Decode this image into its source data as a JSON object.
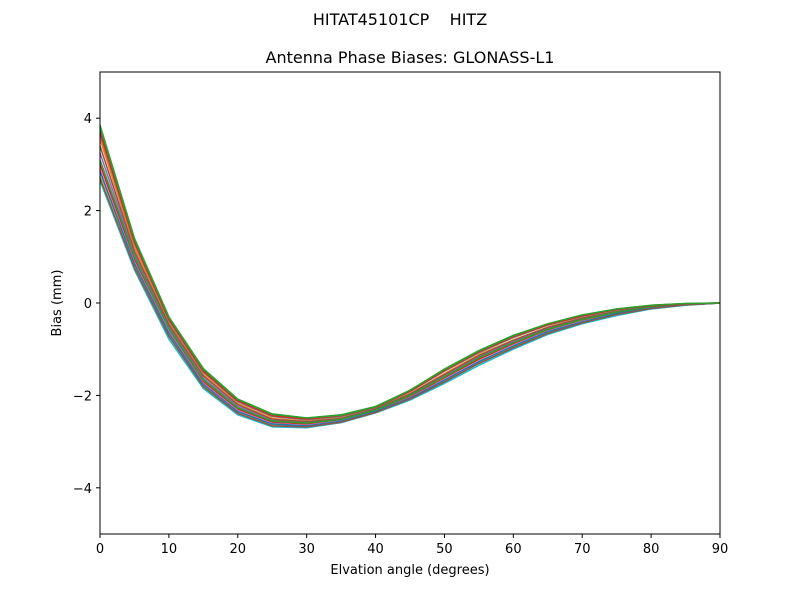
{
  "figure": {
    "suptitle": "HITAT45101CP    HITZ"
  },
  "chart_data": {
    "type": "line",
    "title": "Antenna Phase Biases: GLONASS-L1",
    "xlabel": "Elvation angle (degrees)",
    "ylabel": "Bias (mm)",
    "xlim": [
      0,
      90
    ],
    "ylim": [
      -5,
      5
    ],
    "x_ticks": [
      0,
      10,
      20,
      30,
      40,
      50,
      60,
      70,
      80,
      90
    ],
    "y_ticks": [
      -4,
      -2,
      0,
      2,
      4
    ],
    "x_tick_labels": [
      "0",
      "10",
      "20",
      "30",
      "40",
      "50",
      "60",
      "70",
      "80",
      "90"
    ],
    "y_tick_labels": [
      "−4",
      "−2",
      "0",
      "2",
      "4"
    ],
    "grid": false,
    "legend": "none",
    "x": [
      0,
      5,
      10,
      15,
      20,
      25,
      30,
      35,
      40,
      45,
      50,
      55,
      60,
      65,
      70,
      75,
      80,
      85,
      90
    ],
    "series": [
      {
        "color": "#1f77b4",
        "values": [
          3.8,
          1.35,
          -0.32,
          -1.45,
          -2.1,
          -2.42,
          -2.5,
          -2.43,
          -2.25,
          -1.9,
          -1.45,
          -1.05,
          -0.72,
          -0.46,
          -0.27,
          -0.14,
          -0.06,
          -0.02,
          0.0
        ]
      },
      {
        "color": "#ff7f0e",
        "values": [
          3.55,
          1.2,
          -0.42,
          -1.55,
          -2.18,
          -2.5,
          -2.56,
          -2.49,
          -2.29,
          -1.96,
          -1.53,
          -1.12,
          -0.8,
          -0.52,
          -0.32,
          -0.18,
          -0.08,
          -0.03,
          0.0
        ]
      },
      {
        "color": "#2ca02c",
        "values": [
          3.85,
          1.4,
          -0.3,
          -1.42,
          -2.08,
          -2.4,
          -2.49,
          -2.42,
          -2.24,
          -1.89,
          -1.43,
          -1.03,
          -0.7,
          -0.45,
          -0.26,
          -0.13,
          -0.05,
          -0.01,
          0.0
        ]
      },
      {
        "color": "#d62728",
        "values": [
          3.0,
          0.95,
          -0.58,
          -1.7,
          -2.3,
          -2.58,
          -2.62,
          -2.53,
          -2.33,
          -2.02,
          -1.62,
          -1.22,
          -0.88,
          -0.58,
          -0.37,
          -0.21,
          -0.1,
          -0.03,
          0.0
        ]
      },
      {
        "color": "#9467bd",
        "values": [
          3.25,
          1.05,
          -0.52,
          -1.63,
          -2.24,
          -2.54,
          -2.59,
          -2.51,
          -2.31,
          -1.99,
          -1.58,
          -1.17,
          -0.84,
          -0.55,
          -0.35,
          -0.19,
          -0.09,
          -0.03,
          0.0
        ]
      },
      {
        "color": "#8c564b",
        "values": [
          3.4,
          1.12,
          -0.47,
          -1.58,
          -2.2,
          -2.52,
          -2.57,
          -2.5,
          -2.3,
          -1.97,
          -1.55,
          -1.14,
          -0.81,
          -0.53,
          -0.33,
          -0.18,
          -0.08,
          -0.03,
          0.0
        ]
      },
      {
        "color": "#e377c2",
        "values": [
          2.9,
          0.88,
          -0.62,
          -1.74,
          -2.33,
          -2.61,
          -2.65,
          -2.55,
          -2.35,
          -2.05,
          -1.66,
          -1.26,
          -0.92,
          -0.61,
          -0.4,
          -0.23,
          -0.11,
          -0.04,
          0.0
        ]
      },
      {
        "color": "#7f7f7f",
        "values": [
          3.65,
          1.28,
          -0.38,
          -1.5,
          -2.14,
          -2.46,
          -2.53,
          -2.46,
          -2.27,
          -1.92,
          -1.48,
          -1.08,
          -0.75,
          -0.48,
          -0.29,
          -0.15,
          -0.06,
          -0.02,
          0.0
        ]
      },
      {
        "color": "#bcbd22",
        "values": [
          2.75,
          0.8,
          -0.68,
          -1.78,
          -2.36,
          -2.64,
          -2.67,
          -2.57,
          -2.36,
          -2.07,
          -1.69,
          -1.29,
          -0.95,
          -0.64,
          -0.42,
          -0.24,
          -0.12,
          -0.04,
          0.0
        ]
      },
      {
        "color": "#17becf",
        "values": [
          2.65,
          0.72,
          -0.78,
          -1.85,
          -2.42,
          -2.68,
          -2.7,
          -2.59,
          -2.38,
          -2.1,
          -1.74,
          -1.35,
          -1.0,
          -0.68,
          -0.45,
          -0.27,
          -0.13,
          -0.05,
          0.0
        ]
      },
      {
        "color": "#2ca02c",
        "values": [
          3.1,
          1.0,
          -0.55,
          -1.66,
          -2.27,
          -2.56,
          -2.6,
          -2.52,
          -2.32,
          -2.0,
          -1.6,
          -1.19,
          -0.86,
          -0.57,
          -0.36,
          -0.2,
          -0.09,
          -0.03,
          0.0
        ]
      },
      {
        "color": "#1f77b4",
        "values": [
          2.85,
          0.85,
          -0.65,
          -1.76,
          -2.35,
          -2.62,
          -2.66,
          -2.56,
          -2.35,
          -2.06,
          -1.67,
          -1.27,
          -0.93,
          -0.62,
          -0.41,
          -0.23,
          -0.11,
          -0.04,
          0.0
        ]
      },
      {
        "color": "#d62728",
        "values": [
          3.7,
          1.32,
          -0.35,
          -1.48,
          -2.12,
          -2.44,
          -2.51,
          -2.44,
          -2.26,
          -1.91,
          -1.46,
          -1.06,
          -0.73,
          -0.47,
          -0.28,
          -0.14,
          -0.06,
          -0.02,
          0.0
        ]
      },
      {
        "color": "#8c564b",
        "values": [
          2.7,
          0.76,
          -0.72,
          -1.81,
          -2.39,
          -2.66,
          -2.68,
          -2.58,
          -2.37,
          -2.08,
          -1.71,
          -1.31,
          -0.97,
          -0.66,
          -0.43,
          -0.25,
          -0.12,
          -0.04,
          0.0
        ]
      },
      {
        "color": "#2ca02c",
        "values": [
          3.82,
          1.38,
          -0.31,
          -1.44,
          -2.09,
          -2.41,
          -2.49,
          -2.43,
          -2.25,
          -1.89,
          -1.44,
          -1.04,
          -0.71,
          -0.45,
          -0.26,
          -0.13,
          -0.05,
          -0.01,
          0.0
        ]
      }
    ]
  }
}
